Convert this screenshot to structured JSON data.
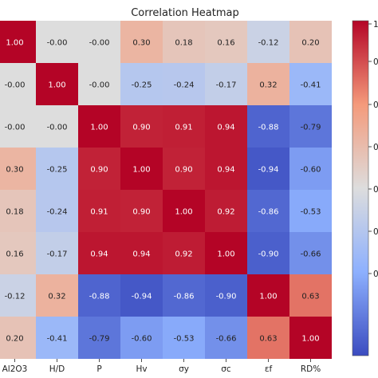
{
  "chart_data": {
    "type": "heatmap",
    "title": "Correlation Heatmap",
    "xlabels": [
      "Al2O3",
      "H/D",
      "P",
      "Hv",
      "σy",
      "σc",
      "εf",
      "RD%"
    ],
    "ylabels": [
      "",
      "",
      "",
      "",
      "",
      "",
      "",
      ""
    ],
    "matrix": [
      [
        1.0,
        -0.0,
        -0.0,
        0.3,
        0.18,
        0.16,
        -0.12,
        0.2
      ],
      [
        -0.0,
        1.0,
        -0.0,
        -0.25,
        -0.24,
        -0.17,
        0.32,
        -0.41
      ],
      [
        -0.0,
        -0.0,
        1.0,
        0.9,
        0.91,
        0.94,
        -0.88,
        -0.79
      ],
      [
        0.3,
        -0.25,
        0.9,
        1.0,
        0.9,
        0.94,
        -0.94,
        -0.6
      ],
      [
        0.18,
        -0.24,
        0.91,
        0.9,
        1.0,
        0.92,
        -0.86,
        -0.53
      ],
      [
        0.16,
        -0.17,
        0.94,
        0.94,
        0.92,
        1.0,
        -0.9,
        -0.66
      ],
      [
        -0.12,
        0.32,
        -0.88,
        -0.94,
        -0.86,
        -0.9,
        1.0,
        0.63
      ],
      [
        0.2,
        -0.41,
        -0.79,
        -0.6,
        -0.53,
        -0.66,
        0.63,
        1.0
      ]
    ],
    "cell_labels": [
      [
        "1.00",
        "-0.00",
        "-0.00",
        "0.30",
        "0.18",
        "0.16",
        "-0.12",
        "0.20"
      ],
      [
        "-0.00",
        "1.00",
        "-0.00",
        "-0.25",
        "-0.24",
        "-0.17",
        "0.32",
        "-0.41"
      ],
      [
        "-0.00",
        "-0.00",
        "1.00",
        "0.90",
        "0.91",
        "0.94",
        "-0.88",
        "-0.79"
      ],
      [
        "0.30",
        "-0.25",
        "0.90",
        "1.00",
        "0.90",
        "0.94",
        "-0.94",
        "-0.60"
      ],
      [
        "0.18",
        "-0.24",
        "0.91",
        "0.90",
        "1.00",
        "0.92",
        "-0.86",
        "-0.53"
      ],
      [
        "0.16",
        "-0.17",
        "0.94",
        "0.94",
        "0.92",
        "1.00",
        "-0.90",
        "-0.66"
      ],
      [
        "-0.12",
        "0.32",
        "-0.88",
        "-0.94",
        "-0.86",
        "-0.90",
        "1.00",
        "0.63"
      ],
      [
        "0.20",
        "-0.41",
        "-0.79",
        "-0.60",
        "-0.53",
        "-0.66",
        "0.63",
        "1.00"
      ]
    ],
    "value_range": [
      -1,
      1
    ],
    "colormap": "coolwarm",
    "colorbar_tick_labels": [
      "1",
      "0",
      "0",
      "0",
      "0",
      "0",
      "0"
    ],
    "colors": {
      "low": "#3b4cc0",
      "mid": "#dddddd",
      "high": "#b40426",
      "text": "#222222",
      "background": "#ffffff"
    }
  }
}
